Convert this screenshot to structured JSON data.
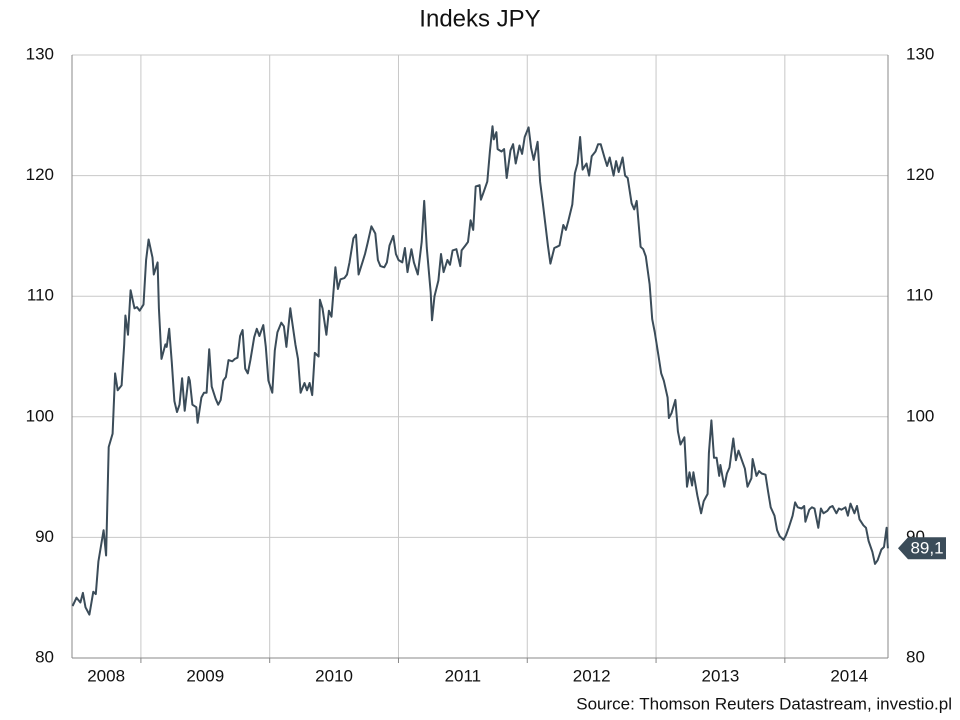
{
  "chart_data": {
    "type": "line",
    "title": "Indeks JPY",
    "source": "Source: Thomson Reuters Datastream, investio.pl",
    "color": "#3b4c59",
    "x": [
      2008.47,
      2008.5,
      2008.53,
      2008.55,
      2008.57,
      2008.6,
      2008.63,
      2008.65,
      2008.67,
      2008.71,
      2008.73,
      2008.75,
      2008.78,
      2008.8,
      2008.82,
      2008.85,
      2008.87,
      2008.88,
      2008.9,
      2008.92,
      2008.95,
      2008.97,
      2008.99,
      2009.02,
      2009.04,
      2009.06,
      2009.09,
      2009.1,
      2009.13,
      2009.14,
      2009.16,
      2009.19,
      2009.2,
      2009.22,
      2009.24,
      2009.26,
      2009.28,
      2009.3,
      2009.32,
      2009.34,
      2009.37,
      2009.38,
      2009.4,
      2009.43,
      2009.44,
      2009.47,
      2009.49,
      2009.51,
      2009.53,
      2009.55,
      2009.58,
      2009.6,
      2009.62,
      2009.64,
      2009.66,
      2009.68,
      2009.71,
      2009.73,
      2009.75,
      2009.77,
      2009.79,
      2009.81,
      2009.83,
      2009.85,
      2009.88,
      2009.9,
      2009.92,
      2009.95,
      2009.97,
      2009.99,
      2010.02,
      2010.04,
      2010.06,
      2010.09,
      2010.11,
      2010.13,
      2010.16,
      2010.17,
      2010.2,
      2010.22,
      2010.24,
      2010.27,
      2010.29,
      2010.31,
      2010.33,
      2010.35,
      2010.38,
      2010.39,
      2010.41,
      2010.44,
      2010.46,
      2010.48,
      2010.51,
      2010.53,
      2010.55,
      2010.58,
      2010.6,
      2010.62,
      2010.65,
      2010.67,
      2010.69,
      2010.72,
      2010.74,
      2010.76,
      2010.79,
      2010.82,
      2010.84,
      2010.86,
      2010.89,
      2010.91,
      2010.93,
      2010.96,
      2010.98,
      2011.0,
      2011.03,
      2011.05,
      2011.07,
      2011.1,
      2011.12,
      2011.15,
      2011.18,
      2011.2,
      2011.22,
      2011.25,
      2011.26,
      2011.28,
      2011.31,
      2011.33,
      2011.35,
      2011.38,
      2011.4,
      2011.42,
      2011.45,
      2011.48,
      2011.49,
      2011.52,
      2011.54,
      2011.56,
      2011.58,
      2011.6,
      2011.63,
      2011.64,
      2011.66,
      2011.69,
      2011.71,
      2011.73,
      2011.74,
      2011.76,
      2011.77,
      2011.8,
      2011.82,
      2011.84,
      2011.87,
      2011.89,
      2011.91,
      2011.94,
      2011.96,
      2011.98,
      2012.01,
      2012.03,
      2012.05,
      2012.08,
      2012.1,
      2012.12,
      2012.14,
      2012.16,
      2012.18,
      2012.21,
      2012.23,
      2012.25,
      2012.28,
      2012.3,
      2012.32,
      2012.35,
      2012.37,
      2012.39,
      2012.41,
      2012.43,
      2012.46,
      2012.48,
      2012.5,
      2012.53,
      2012.55,
      2012.57,
      2012.6,
      2012.62,
      2012.64,
      2012.67,
      2012.69,
      2012.71,
      2012.74,
      2012.76,
      2012.78,
      2012.81,
      2012.83,
      2012.85,
      2012.88,
      2012.9,
      2012.92,
      2012.95,
      2012.97,
      2012.99,
      2013.02,
      2013.04,
      2013.06,
      2013.09,
      2013.1,
      2013.12,
      2013.15,
      2013.17,
      2013.19,
      2013.22,
      2013.24,
      2013.26,
      2013.28,
      2013.29,
      2013.32,
      2013.35,
      2013.37,
      2013.4,
      2013.41,
      2013.43,
      2013.45,
      2013.47,
      2013.49,
      2013.5,
      2013.53,
      2013.55,
      2013.57,
      2013.6,
      2013.62,
      2013.64,
      2013.67,
      2013.69,
      2013.71,
      2013.74,
      2013.75,
      2013.78,
      2013.8,
      2013.82,
      2013.85,
      2013.87,
      2013.89,
      2013.92,
      2013.94,
      2013.96,
      2013.99,
      2014.01,
      2014.03,
      2014.06,
      2014.08,
      2014.1,
      2014.13,
      2014.15,
      2014.16,
      2014.19,
      2014.21,
      2014.23,
      2014.26,
      2014.28,
      2014.3,
      2014.33,
      2014.35,
      2014.37,
      2014.4,
      2014.42,
      2014.44,
      2014.47,
      2014.49,
      2014.51,
      2014.54,
      2014.56,
      2014.58,
      2014.61,
      2014.63,
      2014.65,
      2014.68,
      2014.7,
      2014.72,
      2014.75,
      2014.77,
      2014.79,
      2014.8
    ],
    "values": [
      84.3,
      85.0,
      84.6,
      85.4,
      84.2,
      83.6,
      85.5,
      85.3,
      88.0,
      90.6,
      88.5,
      97.5,
      98.6,
      103.6,
      102.2,
      102.6,
      106.0,
      108.4,
      106.8,
      110.5,
      109.0,
      109.1,
      108.8,
      109.3,
      113.0,
      114.7,
      113.2,
      111.8,
      112.8,
      109.0,
      104.8,
      106.0,
      105.8,
      107.3,
      104.5,
      101.3,
      100.4,
      101.0,
      103.2,
      100.5,
      103.3,
      103.0,
      101.0,
      100.8,
      99.5,
      101.6,
      102.0,
      102.0,
      105.6,
      102.5,
      101.5,
      101.0,
      101.4,
      103.0,
      103.3,
      104.7,
      104.6,
      104.8,
      104.9,
      106.7,
      107.2,
      104.0,
      103.6,
      104.7,
      106.6,
      107.3,
      106.7,
      107.6,
      105.8,
      103.0,
      102.0,
      105.5,
      107.0,
      107.8,
      107.5,
      105.8,
      109.0,
      108.2,
      106.0,
      104.8,
      102.0,
      102.8,
      102.2,
      102.8,
      101.8,
      105.3,
      105.0,
      109.7,
      109.0,
      106.8,
      108.8,
      108.3,
      112.4,
      110.6,
      111.4,
      111.5,
      111.8,
      112.8,
      114.8,
      115.1,
      111.8,
      112.8,
      113.5,
      114.4,
      115.8,
      115.2,
      113.0,
      112.5,
      112.4,
      112.8,
      114.2,
      115.0,
      113.5,
      113.0,
      112.8,
      114.0,
      112.0,
      113.9,
      112.8,
      111.8,
      114.5,
      117.9,
      114.0,
      110.3,
      108.0,
      110.0,
      111.3,
      113.5,
      112.0,
      113.0,
      112.6,
      113.8,
      113.9,
      112.5,
      113.8,
      114.2,
      114.5,
      116.3,
      115.5,
      119.1,
      119.2,
      118.0,
      118.6,
      119.5,
      122.0,
      124.1,
      123.0,
      123.6,
      122.2,
      122.0,
      122.2,
      119.8,
      122.1,
      122.6,
      121.0,
      122.5,
      121.8,
      123.2,
      124.0,
      122.3,
      121.3,
      122.8,
      119.5,
      117.8,
      116.0,
      114.2,
      112.7,
      114.0,
      114.1,
      114.2,
      115.9,
      115.5,
      116.3,
      117.6,
      120.2,
      121.0,
      123.2,
      120.5,
      121.0,
      120.0,
      121.6,
      122.0,
      122.6,
      122.6,
      121.5,
      120.8,
      121.5,
      120.0,
      121.2,
      120.3,
      121.5,
      120.0,
      119.8,
      117.7,
      117.2,
      117.9,
      114.1,
      113.9,
      113.3,
      111.0,
      108.1,
      107.0,
      105.0,
      103.6,
      103.0,
      101.6,
      99.9,
      100.3,
      101.4,
      98.8,
      97.7,
      98.3,
      94.2,
      95.4,
      94.3,
      95.4,
      93.5,
      92.0,
      93.0,
      93.6,
      97.0,
      99.7,
      96.6,
      96.6,
      95.1,
      96.0,
      94.2,
      95.3,
      95.8,
      98.2,
      96.4,
      97.2,
      96.3,
      95.7,
      94.2,
      94.9,
      96.5,
      95.1,
      95.5,
      95.3,
      95.2,
      93.8,
      92.5,
      91.8,
      90.6,
      90.1,
      89.8,
      90.2,
      90.8,
      91.8,
      92.9,
      92.5,
      92.4,
      92.6,
      91.3,
      92.3,
      92.5,
      92.4,
      90.8,
      92.4,
      92.0,
      92.2,
      92.5,
      92.6,
      92.0,
      92.4,
      92.3,
      92.5,
      91.8,
      92.8,
      92.0,
      92.6,
      91.5,
      91.0,
      90.8,
      89.7,
      88.8,
      87.8,
      88.1,
      89.0,
      89.2,
      90.8,
      89.1
    ],
    "last_label": {
      "value": 89.1,
      "label": "89,1"
    },
    "xlim": [
      2008.465,
      2014.801
    ],
    "xgrid": [
      2009,
      2010,
      2011,
      2012,
      2013,
      2014
    ],
    "xticks": [
      {
        "value": 2008.73,
        "label": "2008"
      },
      {
        "value": 2009.5,
        "label": "2009"
      },
      {
        "value": 2010.5,
        "label": "2010"
      },
      {
        "value": 2011.5,
        "label": "2011"
      },
      {
        "value": 2012.5,
        "label": "2012"
      },
      {
        "value": 2013.5,
        "label": "2013"
      },
      {
        "value": 2014.5,
        "label": "2014"
      }
    ],
    "ylim": [
      80,
      130
    ],
    "yticks": [
      80,
      90,
      100,
      110,
      120,
      130
    ],
    "grid": true
  }
}
